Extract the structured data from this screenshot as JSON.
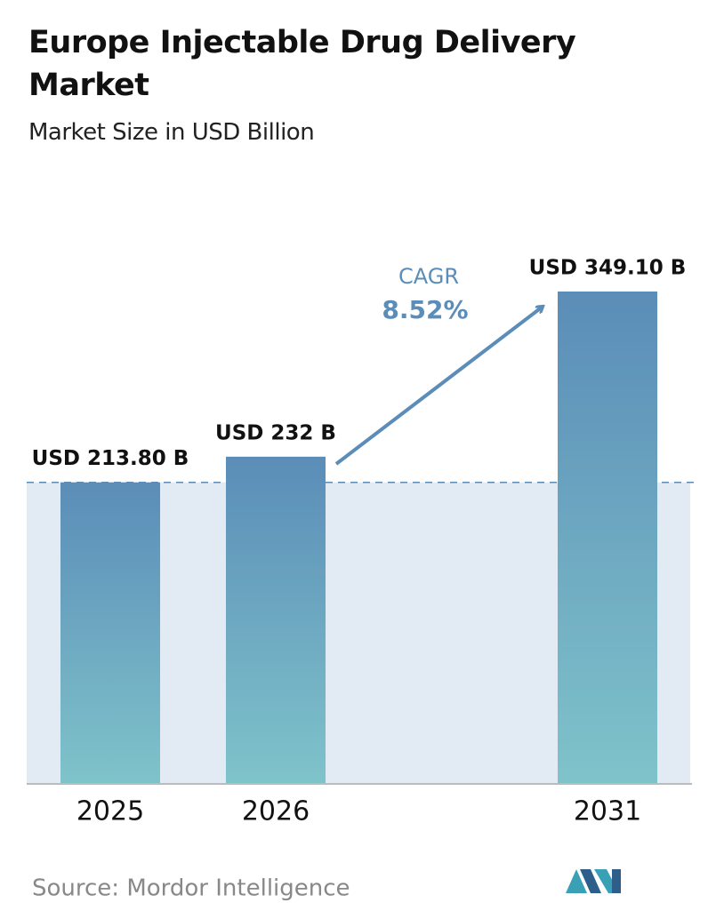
{
  "chart_data": {
    "type": "bar",
    "title": "Europe Injectable Drug Delivery Market",
    "subtitle": "Market Size in USD Billion",
    "categories": [
      "2025",
      "2026",
      "2031"
    ],
    "values": [
      213.8,
      232,
      349.1
    ],
    "value_labels": [
      "USD 213.80 B",
      "USD 232 B",
      "USD 349.10 B"
    ],
    "annotation": {
      "label": "CAGR",
      "value": "8.52%"
    },
    "source": "Source:  Mordor Intelligence"
  }
}
